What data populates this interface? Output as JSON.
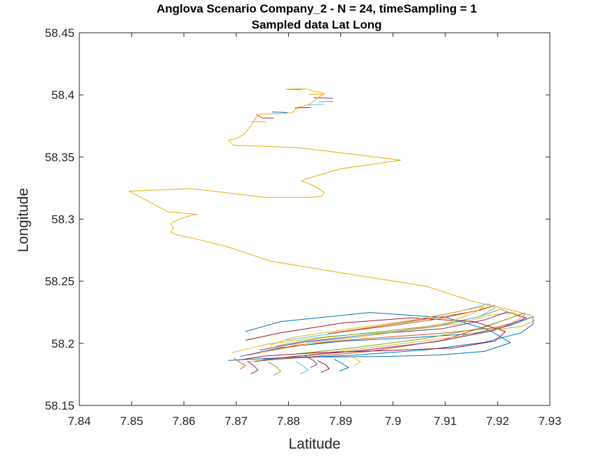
{
  "chart_data": {
    "type": "line",
    "title": "Anglova Scenario Company_2 - N = 24, timeSampling = 1",
    "subtitle": "Sampled data Lat Long",
    "xlabel": "Latitude",
    "ylabel": "Longitude",
    "xlim": [
      7.84,
      7.93
    ],
    "ylim": [
      58.15,
      58.45
    ],
    "xticks": [
      "7.84",
      "7.85",
      "7.86",
      "7.87",
      "7.88",
      "7.89",
      "7.9",
      "7.91",
      "7.92",
      "7.93"
    ],
    "yticks": [
      "58.15",
      "58.2",
      "58.25",
      "58.3",
      "58.35",
      "58.4",
      "58.45"
    ],
    "grid": false,
    "legend": "none",
    "colors": [
      "#0072BD",
      "#D95319",
      "#EDB120",
      "#7E2F8E",
      "#77AC30",
      "#4DBEEE",
      "#A2142F"
    ],
    "route": {
      "x": [
        7.8795,
        7.8832,
        7.8868,
        7.8852,
        7.8838,
        7.8818,
        7.8808,
        7.8785,
        7.8745,
        7.8738,
        7.8728,
        7.8715,
        7.8708,
        7.8698,
        7.8688,
        7.8685,
        7.8695,
        7.882,
        7.9015,
        7.89,
        7.8835,
        7.8825,
        7.8845,
        7.8868,
        7.8865,
        7.8845,
        7.8755,
        7.8615,
        7.8495,
        7.857,
        7.8625,
        7.861,
        7.8588,
        7.8575,
        7.858,
        7.8575,
        7.8585,
        7.8625,
        7.8685,
        7.8765,
        7.8905,
        7.9065,
        7.9145,
        7.9195,
        7.9235,
        7.9265,
        7.927,
        7.9245,
        7.9185
      ],
      "y": [
        58.4045,
        58.4048,
        58.401,
        58.396,
        58.392,
        58.39,
        58.3858,
        58.3848,
        58.3845,
        58.3818,
        58.375,
        58.3685,
        58.3665,
        58.3645,
        58.3638,
        58.3635,
        58.3595,
        58.3575,
        58.3475,
        58.3405,
        58.3325,
        58.3308,
        58.3275,
        58.3218,
        58.3185,
        58.3175,
        58.3175,
        58.3245,
        58.3225,
        58.3058,
        58.3038,
        58.3025,
        58.2995,
        58.2965,
        58.2925,
        58.2895,
        58.2875,
        58.2838,
        58.2775,
        58.2662,
        58.2565,
        58.2458,
        58.2348,
        58.2295,
        58.2258,
        58.2225,
        58.218,
        58.2135,
        58.2105
      ]
    },
    "clusters": [
      {
        "x": [
          7.8708,
          7.8785,
          7.8905,
          7.9045,
          7.9155,
          7.9225,
          7.9268,
          7.9268,
          7.9245,
          7.9175,
          7.9065,
          7.8925,
          7.8795,
          7.8735
        ],
        "y": [
          58.1895,
          58.1965,
          58.2018,
          58.2048,
          58.2078,
          58.2145,
          58.2215,
          58.2155,
          58.2085,
          58.2008,
          58.1948,
          58.1905,
          58.1878,
          58.1855
        ]
      },
      {
        "x": [
          7.8722,
          7.8815,
          7.8945,
          7.9085,
          7.9195,
          7.9248,
          7.9252,
          7.9205,
          7.9095,
          7.8955,
          7.8825,
          7.8748
        ],
        "y": [
          58.1905,
          58.1985,
          58.2038,
          58.2078,
          58.2125,
          58.2188,
          58.2245,
          58.2175,
          58.2025,
          58.1935,
          58.1885,
          58.1862
        ]
      },
      {
        "x": [
          7.8692,
          7.8762,
          7.8875,
          7.9015,
          7.9125,
          7.9188,
          7.9232,
          7.9245,
          7.9215,
          7.9125,
          7.8995,
          7.8855,
          7.8762,
          7.8718
        ],
        "y": [
          58.1925,
          58.1995,
          58.2055,
          58.2098,
          58.2158,
          58.2228,
          58.2248,
          58.2205,
          58.2138,
          58.2055,
          58.1985,
          58.1915,
          58.1875,
          58.1848
        ]
      },
      {
        "x": [
          7.8745,
          7.8835,
          7.8965,
          7.9095,
          7.9175,
          7.9218,
          7.9255,
          7.9195,
          7.9085,
          7.8945,
          7.8815,
          7.8752
        ],
        "y": [
          58.1945,
          58.2015,
          58.2075,
          58.2118,
          58.2188,
          58.2252,
          58.2205,
          58.2105,
          58.2015,
          58.1945,
          58.1895,
          58.1868
        ]
      },
      {
        "x": [
          7.8775,
          7.8865,
          7.8985,
          7.9105,
          7.9165,
          7.9205,
          7.9238,
          7.9172,
          7.9055,
          7.8925,
          7.8815
        ],
        "y": [
          58.1978,
          58.2045,
          58.2098,
          58.2155,
          58.2215,
          58.2275,
          58.2225,
          58.2125,
          58.2035,
          58.1965,
          58.1915
        ]
      },
      {
        "x": [
          7.8835,
          7.8945,
          7.9075,
          7.9165,
          7.9195,
          7.9182,
          7.9125,
          7.9015,
          7.8895,
          7.8795
        ],
        "y": [
          58.2005,
          58.2065,
          58.2135,
          58.2215,
          58.2285,
          58.2318,
          58.2255,
          58.2165,
          58.2085,
          58.2025
        ]
      },
      {
        "x": [
          7.8705,
          7.8755,
          7.8855,
          7.8985,
          7.9115,
          7.9195,
          7.9215,
          7.9155,
          7.9035,
          7.8905,
          7.8785,
          7.8718
        ],
        "y": [
          58.1865,
          58.1898,
          58.1925,
          58.1942,
          58.1962,
          58.2018,
          58.2095,
          58.2175,
          58.2205,
          58.2165,
          58.2085,
          58.2025
        ]
      },
      {
        "x": [
          7.8685,
          7.8752,
          7.8822,
          7.8905,
          7.8985,
          7.9085,
          7.9175,
          7.9225,
          7.9185,
          7.9105,
          7.8955,
          7.8785,
          7.8718
        ],
        "y": [
          58.1862,
          58.1878,
          58.1888,
          58.1892,
          58.1895,
          58.1905,
          58.1935,
          58.2005,
          58.2105,
          58.2205,
          58.2248,
          58.2175,
          58.2095
        ]
      },
      {
        "x": [
          7.8875,
          7.8985,
          7.9095,
          7.9165,
          7.9195,
          7.9162,
          7.9085,
          7.8985,
          7.8885
        ],
        "y": [
          58.2078,
          58.2145,
          58.2215,
          58.2265,
          58.2305,
          58.2265,
          58.2195,
          58.2135,
          58.2085
        ]
      },
      {
        "x": [
          7.8745,
          7.8855,
          7.8995,
          7.9105,
          7.9155,
          7.9175,
          7.9135,
          7.9035,
          7.8915,
          7.8805,
          7.8765
        ],
        "y": [
          58.1925,
          58.2005,
          58.2085,
          58.2165,
          58.2245,
          58.2298,
          58.2265,
          58.2185,
          58.2115,
          58.2045,
          58.1985
        ]
      }
    ],
    "ticks": [
      {
        "x": [
          7.8722,
          7.8735,
          7.8742,
          7.8728
        ],
        "y": [
          58.1855,
          58.1815,
          58.1785,
          58.1755
        ]
      },
      {
        "x": [
          7.8762,
          7.8778,
          7.8785,
          7.8772
        ],
        "y": [
          58.1848,
          58.1808,
          58.1775,
          58.1742
        ]
      },
      {
        "x": [
          7.8815,
          7.8828,
          7.8838,
          7.8822
        ],
        "y": [
          58.1852,
          58.1818,
          58.1785,
          58.1752
        ]
      },
      {
        "x": [
          7.8855,
          7.8872,
          7.8878,
          7.8862
        ],
        "y": [
          58.1862,
          58.1825,
          58.1795,
          58.1765
        ]
      },
      {
        "x": [
          7.8888,
          7.8902,
          7.8915,
          7.8898
        ],
        "y": [
          58.1872,
          58.1838,
          58.1805,
          58.1778
        ]
      },
      {
        "x": [
          7.8695,
          7.8705,
          7.8718,
          7.8708
        ],
        "y": [
          58.1882,
          58.1852,
          58.1822,
          58.1792
        ]
      },
      {
        "x": [
          7.8915,
          7.8928,
          7.8938,
          7.8925
        ],
        "y": [
          58.1905,
          58.1878,
          58.1848,
          58.1822
        ]
      },
      {
        "x": [
          7.8832,
          7.8848,
          7.8855,
          7.8842
        ],
        "y": [
          58.1898,
          58.1862,
          58.1832,
          58.1805
        ]
      }
    ],
    "top_ticks": [
      {
        "x": [
          7.8795,
          7.8825
        ],
        "y": [
          58.4045,
          58.4042
        ]
      },
      {
        "x": [
          7.8838,
          7.8868
        ],
        "y": [
          58.4005,
          58.4002
        ]
      },
      {
        "x": [
          7.8848,
          7.8885
        ],
        "y": [
          58.3978,
          58.3972
        ]
      },
      {
        "x": [
          7.8858,
          7.8885
        ],
        "y": [
          58.3945,
          58.3948
        ]
      },
      {
        "x": [
          7.8838,
          7.8868
        ],
        "y": [
          58.3918,
          58.3925
        ]
      },
      {
        "x": [
          7.8812,
          7.8842
        ],
        "y": [
          58.3895,
          58.3898
        ]
      },
      {
        "x": [
          7.8768,
          7.8798
        ],
        "y": [
          58.3862,
          58.3858
        ]
      },
      {
        "x": [
          7.8738,
          7.8752
        ],
        "y": [
          58.3845,
          58.3808
        ]
      },
      {
        "x": [
          7.8728,
          7.8758
        ],
        "y": [
          58.3785,
          58.3782
        ]
      },
      {
        "x": [
          7.8752,
          7.8772
        ],
        "y": [
          58.3815,
          58.3812
        ]
      }
    ]
  }
}
